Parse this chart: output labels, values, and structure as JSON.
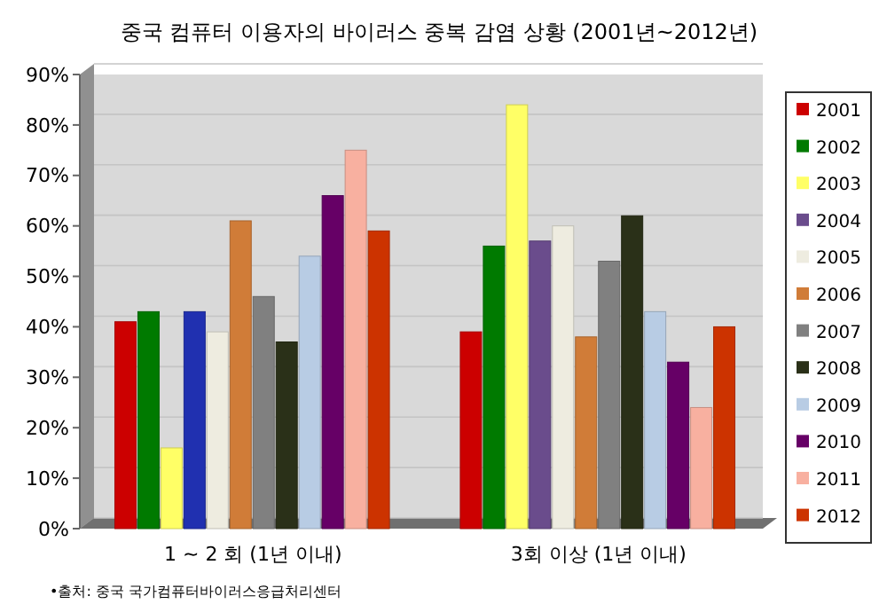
{
  "chart_data": {
    "type": "bar",
    "title": "중국 컴퓨터 이용자의 바이러스 중복 감염 상황 (2001년~2012년)",
    "categories": [
      "1 ~ 2 회 (1년 이내)",
      "3회 이상 (1년 이내)"
    ],
    "series": [
      {
        "name": "2001",
        "color": "#cc0000",
        "values": [
          41,
          39
        ]
      },
      {
        "name": "2002",
        "color": "#007a00",
        "values": [
          43,
          56
        ]
      },
      {
        "name": "2003",
        "color": "#ffff66",
        "values": [
          16,
          84
        ]
      },
      {
        "name": "2004",
        "color": "#6a4c8c",
        "colors": [
          "#2030b0",
          "#6a4c8c"
        ],
        "values": [
          43,
          57
        ]
      },
      {
        "name": "2005",
        "color": "#eeece0",
        "values": [
          39,
          60
        ]
      },
      {
        "name": "2006",
        "color": "#d07c38",
        "values": [
          61,
          38
        ]
      },
      {
        "name": "2007",
        "color": "#808080",
        "values": [
          46,
          53
        ]
      },
      {
        "name": "2008",
        "color": "#2a3018",
        "values": [
          37,
          62
        ]
      },
      {
        "name": "2009",
        "color": "#b8cce4",
        "values": [
          54,
          43
        ]
      },
      {
        "name": "2010",
        "color": "#660066",
        "values": [
          66,
          33
        ]
      },
      {
        "name": "2011",
        "color": "#f8b0a0",
        "values": [
          75,
          24
        ]
      },
      {
        "name": "2012",
        "color": "#cc3300",
        "values": [
          59,
          40
        ]
      }
    ],
    "ylim": [
      0,
      90
    ],
    "yticks": [
      {
        "value": 0,
        "label": "0%"
      },
      {
        "value": 10,
        "label": "10%"
      },
      {
        "value": 20,
        "label": "20%"
      },
      {
        "value": 30,
        "label": "30%"
      },
      {
        "value": 40,
        "label": "40%"
      },
      {
        "value": 50,
        "label": "50%"
      },
      {
        "value": 60,
        "label": "60%"
      },
      {
        "value": 70,
        "label": "70%"
      },
      {
        "value": 80,
        "label": "80%"
      },
      {
        "value": 90,
        "label": "90%"
      }
    ],
    "grid": "y",
    "legend": "right",
    "annotations": [
      "•출처: 중국 국가컴퓨터바이러스응급처리센터"
    ]
  }
}
